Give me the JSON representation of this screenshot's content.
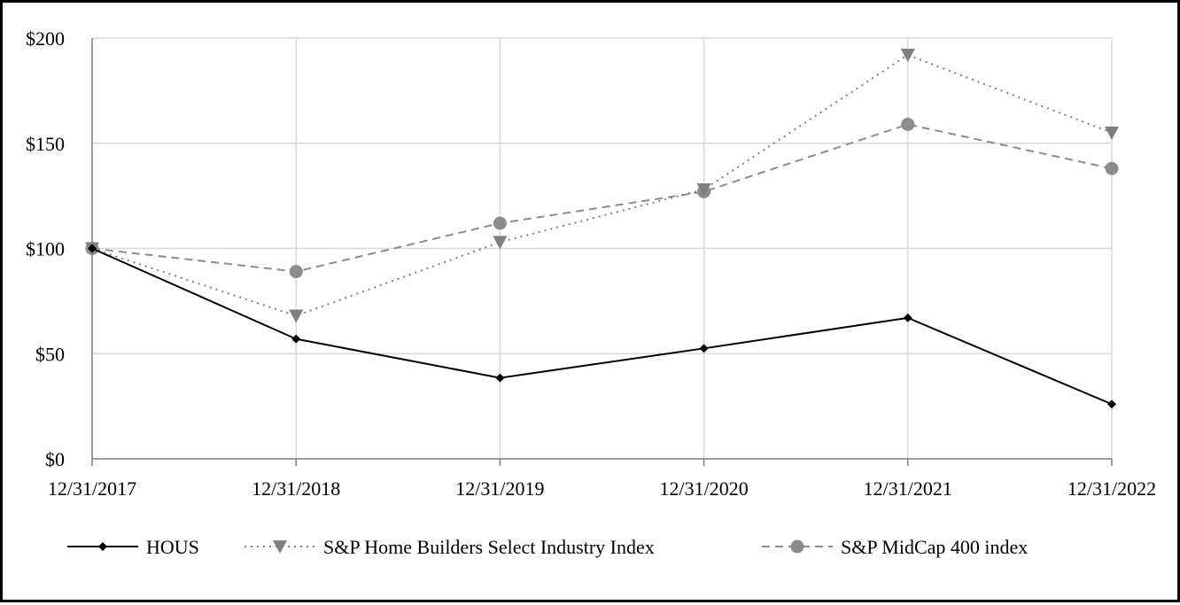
{
  "chart_data": {
    "type": "line",
    "title": "",
    "xlabel": "",
    "ylabel": "",
    "categories": [
      "12/31/2017",
      "12/31/2018",
      "12/31/2019",
      "12/31/2020",
      "12/31/2021",
      "12/31/2022"
    ],
    "y_ticks": [
      "$0",
      "$50",
      "$100",
      "$150",
      "$200"
    ],
    "y_tick_values": [
      0,
      50,
      100,
      150,
      200
    ],
    "ylim": [
      0,
      200
    ],
    "grid": true,
    "legend_position": "bottom",
    "series": [
      {
        "name": "HOUS",
        "values": [
          100,
          57,
          38.5,
          52.5,
          67,
          26
        ],
        "color": "#000000",
        "line_style": "solid",
        "marker": "diamond"
      },
      {
        "name": "S&P Home Builders Select Industry Index",
        "values": [
          100,
          68,
          103,
          128,
          192,
          155
        ],
        "color": "#7f7f7f",
        "line_style": "dotted",
        "marker": "triangle-down"
      },
      {
        "name": "S&P MidCap 400 index",
        "values": [
          100,
          89,
          112,
          127,
          159,
          138
        ],
        "color": "#8c8c8c",
        "line_style": "dashed",
        "marker": "circle"
      }
    ]
  }
}
